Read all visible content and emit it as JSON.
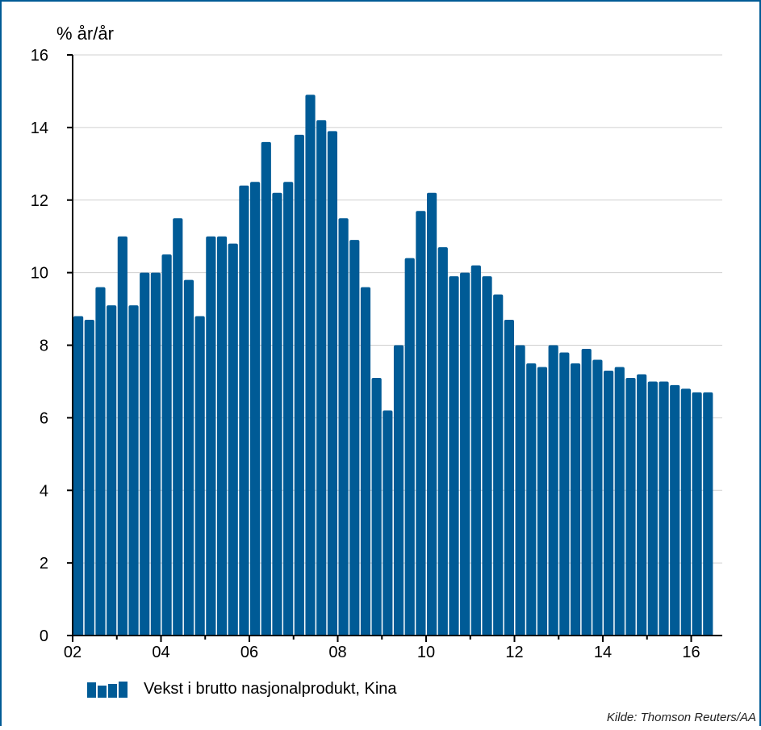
{
  "chart_data": {
    "type": "bar",
    "ylabel": "% år/år",
    "xlabel": "",
    "ylim": [
      0,
      16
    ],
    "yticks": [
      "0",
      "2",
      "4",
      "6",
      "8",
      "10",
      "12",
      "14",
      "16"
    ],
    "xticks": [
      "02",
      "04",
      "06",
      "08",
      "10",
      "12",
      "14",
      "16"
    ],
    "grid": "horizontal",
    "legend_position": "bottom-left",
    "series": [
      {
        "name": "Vekst i brutto nasjonalprodukt, Kina",
        "color": "#005b96",
        "values": [
          8.8,
          8.7,
          9.6,
          9.1,
          11.0,
          9.1,
          10.0,
          10.0,
          10.5,
          11.5,
          9.8,
          8.8,
          11.0,
          11.0,
          10.8,
          12.4,
          12.5,
          13.6,
          12.2,
          12.5,
          13.8,
          14.9,
          14.2,
          13.9,
          11.5,
          10.9,
          9.6,
          7.1,
          6.2,
          8.0,
          10.4,
          11.7,
          12.2,
          10.7,
          9.9,
          10.0,
          10.2,
          9.9,
          9.4,
          8.7,
          8.0,
          7.5,
          7.4,
          8.0,
          7.8,
          7.5,
          7.9,
          7.6,
          7.3,
          7.4,
          7.1,
          7.2,
          7.0,
          7.0,
          6.9,
          6.8,
          6.7,
          6.7
        ]
      }
    ]
  },
  "legend": {
    "label": "Vekst i brutto nasjonalprodukt, Kina"
  },
  "source": "Kilde: Thomson Reuters/AA",
  "colors": {
    "bar": "#005b96",
    "frame": "#005b96",
    "grid": "#d0d0d0",
    "axis": "#000000"
  }
}
